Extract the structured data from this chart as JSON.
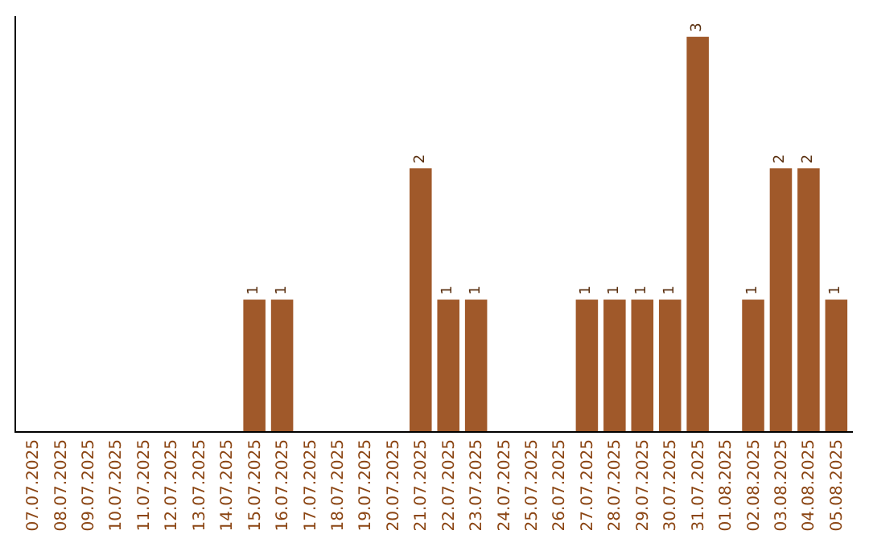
{
  "chart_data": {
    "type": "bar",
    "categories": [
      "07.07.2025",
      "08.07.2025",
      "09.07.2025",
      "10.07.2025",
      "11.07.2025",
      "12.07.2025",
      "13.07.2025",
      "14.07.2025",
      "15.07.2025",
      "16.07.2025",
      "17.07.2025",
      "18.07.2025",
      "19.07.2025",
      "20.07.2025",
      "21.07.2025",
      "22.07.2025",
      "23.07.2025",
      "24.07.2025",
      "25.07.2025",
      "26.07.2025",
      "27.07.2025",
      "28.07.2025",
      "29.07.2025",
      "30.07.2025",
      "31.07.2025",
      "01.08.2025",
      "02.08.2025",
      "03.08.2025",
      "04.08.2025",
      "05.08.2025"
    ],
    "values": [
      0,
      0,
      0,
      0,
      0,
      0,
      0,
      0,
      1,
      1,
      0,
      0,
      0,
      0,
      2,
      1,
      1,
      0,
      0,
      0,
      1,
      1,
      1,
      1,
      3,
      0,
      1,
      2,
      2,
      1
    ],
    "value_labels": [
      null,
      null,
      null,
      null,
      null,
      null,
      null,
      null,
      "1",
      "1",
      null,
      null,
      null,
      null,
      "2",
      "1",
      "1",
      null,
      null,
      null,
      "1",
      "1",
      "1",
      "1",
      "3",
      null,
      "1",
      "2",
      "2",
      "1"
    ],
    "color": "#a0592a",
    "legend": false,
    "tick_labels": "x"
  }
}
